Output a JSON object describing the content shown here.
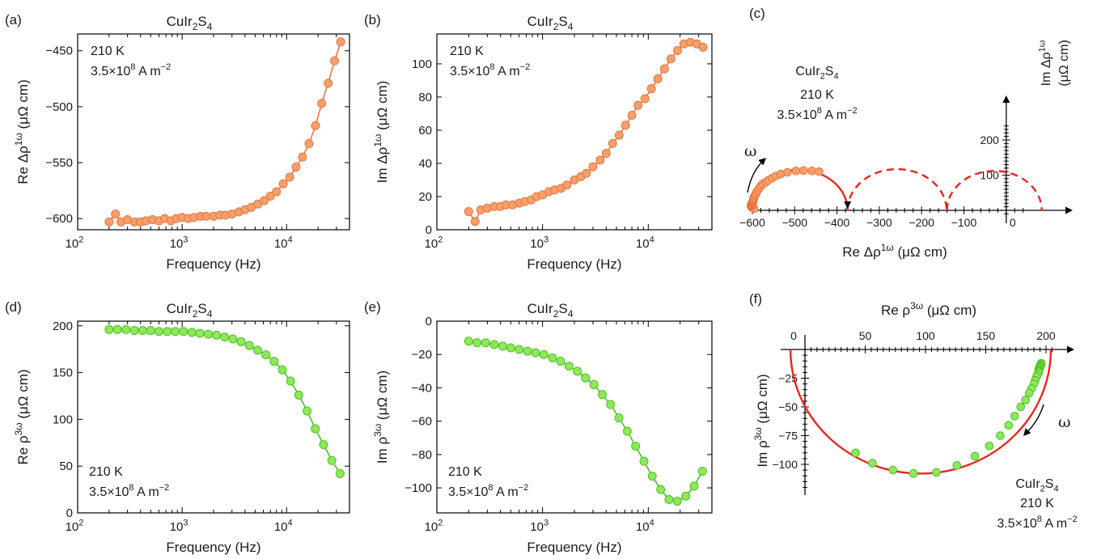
{
  "colors": {
    "orange_fill": "#f5a06c",
    "orange_stroke": "#e8743b",
    "green_fill": "#8ee85a",
    "green_stroke": "#4fbf26",
    "fit_red": "#e8251f",
    "axis": "#000000"
  },
  "chart_data": [
    {
      "id": "a",
      "panel_label": "(a)",
      "type": "line",
      "title": {
        "base": "CuIr",
        "sub": "2",
        "mid": "S",
        "sub2": "4"
      },
      "xlabel": "Frequency (Hz)",
      "ylabel": {
        "pre": "Re Δρ",
        "sup": "1ω",
        "post": " (μΩ cm)"
      },
      "xscale": "log",
      "xlim": [
        100,
        40000
      ],
      "ylim": [
        -610,
        -435
      ],
      "yticks": [
        -600,
        -550,
        -500,
        -450
      ],
      "ytick_labels": [
        "−600",
        "−550",
        "−500",
        "−450"
      ],
      "xticks": [
        100,
        1000,
        10000
      ],
      "xtick_labels": [
        {
          "b": "10",
          "e": "2"
        },
        {
          "b": "10",
          "e": "3"
        },
        {
          "b": "10",
          "e": "4"
        }
      ],
      "annotation": {
        "line1": "210 K",
        "line2_pre": "3.5×10",
        "line2_exp": "8",
        "line2_post": " A m",
        "line2_exp2": "−2",
        "position": "top-left"
      },
      "color": "orange",
      "series": [
        {
          "x": [
            200,
            230,
            260,
            300,
            350,
            400,
            450,
            520,
            600,
            680,
            780,
            880,
            1000,
            1150,
            1300,
            1500,
            1700,
            2000,
            2300,
            2600,
            3000,
            3500,
            4000,
            4600,
            5300,
            6100,
            7000,
            8000,
            9300,
            10700,
            12300,
            14200,
            16400,
            18900,
            21700,
            25000,
            28800,
            33000
          ],
          "y": [
            -603,
            -596,
            -603,
            -601,
            -603,
            -603,
            -602,
            -601,
            -602,
            -600,
            -602,
            -600,
            -599,
            -600,
            -599,
            -598,
            -598,
            -598,
            -597,
            -597,
            -596,
            -594,
            -592,
            -590,
            -587,
            -584,
            -580,
            -576,
            -569,
            -563,
            -554,
            -545,
            -533,
            -517,
            -497,
            -479,
            -459,
            -442
          ]
        }
      ]
    },
    {
      "id": "b",
      "panel_label": "(b)",
      "type": "line",
      "title": {
        "base": "CuIr",
        "sub": "2",
        "mid": "S",
        "sub2": "4"
      },
      "xlabel": "Frequency (Hz)",
      "ylabel": {
        "pre": "Im Δρ",
        "sup": "1ω",
        "post": " (μΩ cm)"
      },
      "xscale": "log",
      "xlim": [
        100,
        40000
      ],
      "ylim": [
        0,
        118
      ],
      "yticks": [
        0,
        20,
        40,
        60,
        80,
        100
      ],
      "ytick_labels": [
        "0",
        "20",
        "40",
        "60",
        "80",
        "100"
      ],
      "xticks": [
        100,
        1000,
        10000
      ],
      "xtick_labels": [
        {
          "b": "10",
          "e": "2"
        },
        {
          "b": "10",
          "e": "3"
        },
        {
          "b": "10",
          "e": "4"
        }
      ],
      "annotation": {
        "line1": "210 K",
        "line2_pre": "3.5×10",
        "line2_exp": "8",
        "line2_post": " A m",
        "line2_exp2": "−2",
        "position": "top-left"
      },
      "color": "orange",
      "series": [
        {
          "x": [
            200,
            230,
            260,
            300,
            350,
            400,
            450,
            520,
            600,
            680,
            780,
            880,
            1000,
            1150,
            1300,
            1500,
            1700,
            2000,
            2300,
            2600,
            3000,
            3500,
            4000,
            4600,
            5300,
            6100,
            7000,
            8000,
            9300,
            10700,
            12300,
            14200,
            16400,
            18900,
            21700,
            25000,
            28800,
            33000
          ],
          "y": [
            11,
            5,
            12,
            13,
            14,
            14,
            15,
            15,
            16,
            17,
            18,
            20,
            21,
            23,
            24,
            25,
            27,
            30,
            32,
            34,
            38,
            42,
            46,
            52,
            57,
            63,
            69,
            75,
            79,
            85,
            91,
            97,
            103,
            108,
            112,
            113,
            112,
            110
          ]
        }
      ]
    },
    {
      "id": "c",
      "panel_label": "(c)",
      "type": "scatter",
      "xlabel": {
        "pre": "Re Δρ",
        "sup": "1ω",
        "post": " (μΩ cm)"
      },
      "ylabel": {
        "pre": "Im Δρ",
        "sup": "1ω",
        "post": "(μΩ cm)"
      },
      "xlim": [
        -620,
        50
      ],
      "ylim": [
        -15,
        250
      ],
      "xticks": [
        -600,
        -500,
        -400,
        -300,
        -200,
        -100,
        0
      ],
      "xtick_labels": [
        "−600",
        "−500",
        "−400",
        "−300",
        "−200",
        "−100",
        "0"
      ],
      "yticks": [
        100,
        200
      ],
      "ytick_labels": [
        "100",
        "200"
      ],
      "annotation": {
        "title": {
          "base": "CuIr",
          "sub": "2",
          "mid": "S",
          "sub2": "4"
        },
        "line1": "210 K",
        "line2_pre": "3.5×10",
        "line2_exp": "8",
        "line2_post": " A m",
        "line2_exp2": "−2",
        "position": "top-left"
      },
      "omega_label": "ω",
      "color": "orange",
      "series": [
        {
          "x": [
            -603,
            -596,
            -603,
            -601,
            -603,
            -603,
            -602,
            -601,
            -602,
            -600,
            -602,
            -600,
            -599,
            -600,
            -599,
            -598,
            -598,
            -598,
            -597,
            -597,
            -596,
            -594,
            -592,
            -590,
            -587,
            -584,
            -580,
            -576,
            -569,
            -563,
            -554,
            -545,
            -533,
            -517,
            -497,
            -479,
            -459,
            -442
          ],
          "y": [
            11,
            5,
            12,
            13,
            14,
            14,
            15,
            15,
            16,
            17,
            18,
            20,
            21,
            23,
            24,
            25,
            27,
            30,
            32,
            34,
            38,
            42,
            46,
            52,
            57,
            63,
            69,
            75,
            79,
            85,
            91,
            97,
            103,
            108,
            112,
            113,
            112,
            110
          ]
        }
      ],
      "fit_arcs": [
        {
          "center": -490,
          "radius": 115,
          "style": "solid"
        },
        {
          "center": -258,
          "radius": 117,
          "style": "dashed"
        },
        {
          "center": -28,
          "radius": 112,
          "style": "dashed"
        }
      ]
    },
    {
      "id": "d",
      "panel_label": "(d)",
      "type": "line",
      "title": {
        "base": "CuIr",
        "sub": "2",
        "mid": "S",
        "sub2": "4"
      },
      "xlabel": "Frequency (Hz)",
      "ylabel": {
        "pre": "Re ρ",
        "sup": "3ω",
        "post": " (μΩ cm)"
      },
      "xscale": "log",
      "xlim": [
        100,
        40000
      ],
      "ylim": [
        0,
        205
      ],
      "yticks": [
        0,
        50,
        100,
        150,
        200
      ],
      "ytick_labels": [
        "0",
        "50",
        "100",
        "150",
        "200"
      ],
      "xticks": [
        100,
        1000,
        10000
      ],
      "xtick_labels": [
        {
          "b": "10",
          "e": "2"
        },
        {
          "b": "10",
          "e": "3"
        },
        {
          "b": "10",
          "e": "4"
        }
      ],
      "annotation": {
        "line1": "210 K",
        "line2_pre": "3.5×10",
        "line2_exp": "8",
        "line2_post": " A m",
        "line2_exp2": "−2",
        "position": "bottom-left"
      },
      "color": "green",
      "series": [
        {
          "x": [
            200,
            240,
            290,
            350,
            420,
            500,
            600,
            720,
            860,
            1030,
            1240,
            1480,
            1780,
            2130,
            2550,
            3060,
            3670,
            4400,
            5280,
            6330,
            7590,
            9100,
            10900,
            13100,
            15700,
            18800,
            22600,
            27100,
            32500
          ],
          "y": [
            196,
            196,
            196,
            195,
            195,
            195,
            194,
            194,
            194,
            194,
            193,
            192,
            191,
            190,
            188,
            186,
            183,
            179,
            174,
            169,
            162,
            153,
            141,
            126,
            109,
            90,
            73,
            56,
            42
          ]
        }
      ]
    },
    {
      "id": "e",
      "panel_label": "(e)",
      "type": "line",
      "title": {
        "base": "CuIr",
        "sub": "2",
        "mid": "S",
        "sub2": "4"
      },
      "xlabel": "Frequency (Hz)",
      "ylabel": {
        "pre": "Im ρ",
        "sup": "3ω",
        "post": " (μΩ cm)"
      },
      "xscale": "log",
      "xlim": [
        100,
        40000
      ],
      "ylim": [
        -115,
        0
      ],
      "yticks": [
        -100,
        -80,
        -60,
        -40,
        -20,
        0
      ],
      "ytick_labels": [
        "−100",
        "−80",
        "−60",
        "−40",
        "−20",
        "0"
      ],
      "xticks": [
        100,
        1000,
        10000
      ],
      "xtick_labels": [
        {
          "b": "10",
          "e": "2"
        },
        {
          "b": "10",
          "e": "3"
        },
        {
          "b": "10",
          "e": "4"
        }
      ],
      "annotation": {
        "line1": "210 K",
        "line2_pre": "3.5×10",
        "line2_exp": "8",
        "line2_post": " A m",
        "line2_exp2": "−2",
        "position": "bottom-left"
      },
      "color": "green",
      "series": [
        {
          "x": [
            200,
            240,
            290,
            350,
            420,
            500,
            600,
            720,
            860,
            1030,
            1240,
            1480,
            1780,
            2130,
            2550,
            3060,
            3670,
            4400,
            5280,
            6330,
            7590,
            9100,
            10900,
            13100,
            15700,
            18800,
            22600,
            27100,
            32500
          ],
          "y": [
            -12,
            -13,
            -13,
            -14,
            -15,
            -16,
            -17,
            -18,
            -19,
            -20,
            -22,
            -24,
            -27,
            -30,
            -34,
            -38,
            -44,
            -50,
            -58,
            -66,
            -75,
            -84,
            -93,
            -101,
            -107,
            -108,
            -105,
            -99,
            -90
          ]
        }
      ]
    },
    {
      "id": "f",
      "panel_label": "(f)",
      "type": "scatter",
      "xlabel": {
        "pre": "Re ρ",
        "sup": "3ω",
        "post": " (μΩ cm)"
      },
      "ylabel": {
        "pre": "Im ρ",
        "sup": "3ω",
        "post": " (μΩ cm)"
      },
      "xlim": [
        -8,
        208
      ],
      "ylim": [
        -122,
        8
      ],
      "xticks": [
        0,
        50,
        100,
        150,
        200
      ],
      "xtick_labels": [
        "0",
        "50",
        "100",
        "150",
        "200"
      ],
      "yticks": [
        -25,
        -50,
        -75,
        -100
      ],
      "ytick_labels": [
        "−25",
        "−50",
        "−75",
        "−100"
      ],
      "annotation": {
        "title": {
          "base": "CuIr",
          "sub": "2",
          "mid": "S",
          "sub2": "4"
        },
        "line1": "210 K",
        "line2_pre": "3.5×10",
        "line2_exp": "8",
        "line2_post": " A m",
        "line2_exp2": "−2",
        "position": "bottom-right"
      },
      "omega_label": "ω",
      "color": "green",
      "series": [
        {
          "x": [
            196,
            196,
            196,
            195,
            195,
            195,
            194,
            194,
            194,
            194,
            193,
            192,
            191,
            190,
            188,
            186,
            183,
            179,
            174,
            169,
            162,
            153,
            141,
            126,
            109,
            90,
            73,
            56,
            42
          ],
          "y": [
            -12,
            -13,
            -13,
            -14,
            -15,
            -16,
            -17,
            -18,
            -19,
            -20,
            -22,
            -24,
            -27,
            -30,
            -34,
            -38,
            -44,
            -50,
            -58,
            -66,
            -75,
            -84,
            -93,
            -101,
            -107,
            -108,
            -105,
            -99,
            -90
          ]
        }
      ],
      "fit_arcs": [
        {
          "center": 96,
          "radius": 108,
          "style": "solid"
        }
      ]
    }
  ]
}
